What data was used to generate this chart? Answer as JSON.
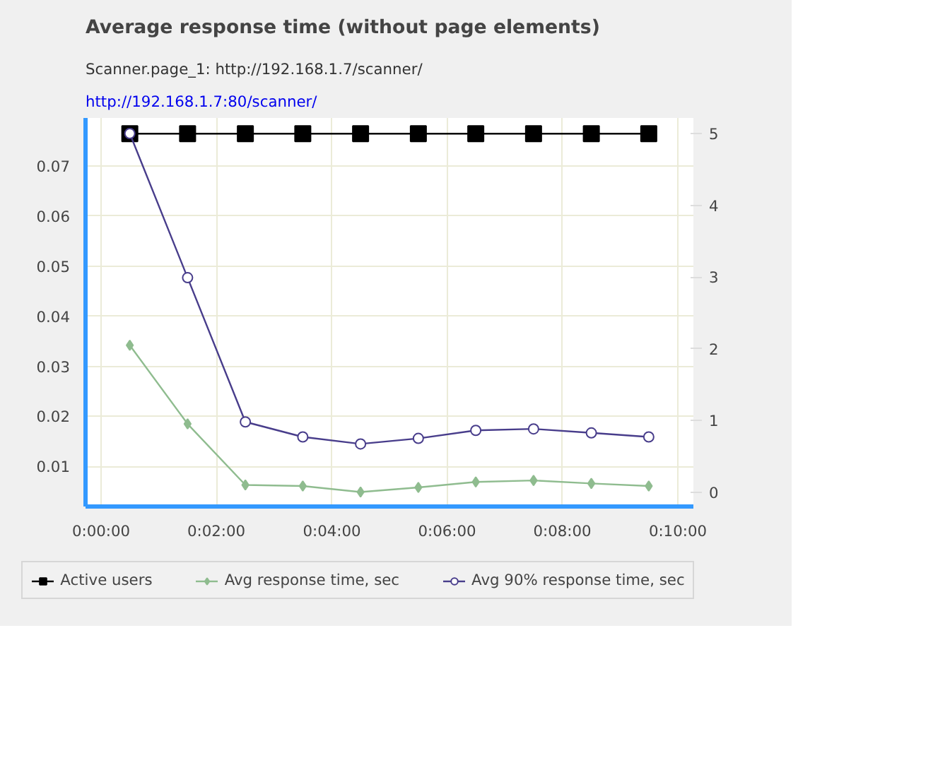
{
  "chart_data": {
    "type": "line",
    "title": "Average response time (without page elements)",
    "subtitle": "Scanner.page_1: http://192.168.1.7/scanner/",
    "annotations": [
      "http://192.168.1.7:80/scanner/"
    ],
    "x": [
      0.0083,
      0.025,
      0.0417,
      0.0583,
      0.075,
      0.0917,
      0.1083,
      0.125,
      0.1417,
      0.1583
    ],
    "series": [
      {
        "name": "Active users",
        "color": "#000000",
        "marker": "square",
        "axis": "y2",
        "values": [
          5,
          5,
          5,
          5,
          5,
          5,
          5,
          5,
          5,
          5
        ]
      },
      {
        "name": "Avg response time, sec",
        "color": "#8fbc8f",
        "marker": "diamond",
        "values": [
          0.0342,
          0.0185,
          0.0063,
          0.0061,
          0.0049,
          0.0058,
          0.0069,
          0.0072,
          0.0066,
          0.0061
        ]
      },
      {
        "name": "Avg 90% response time, sec",
        "color": "#483d8b",
        "marker": "circle",
        "values": [
          0.0765,
          0.0477,
          0.0189,
          0.0159,
          0.0145,
          0.0156,
          0.0172,
          0.0175,
          0.0167,
          0.0159
        ]
      }
    ],
    "xlim": [
      -0.0045,
      0.1712
    ],
    "xticks": [
      {
        "value": 0,
        "label": "0:00:00"
      },
      {
        "value": 0.0333,
        "label": "0:02:00"
      },
      {
        "value": 0.0667,
        "label": "0:04:00"
      },
      {
        "value": 0.1,
        "label": "0:06:00"
      },
      {
        "value": 0.1333,
        "label": "0:08:00"
      },
      {
        "value": 0.1667,
        "label": "0:10:00"
      }
    ],
    "ylim": [
      0.002,
      0.0796
    ],
    "yticks": [
      0.01,
      0.02,
      0.03,
      0.04,
      0.05,
      0.06,
      0.07
    ],
    "y2lim": [
      -0.2,
      5.22
    ],
    "y2ticks": [
      0,
      1,
      2,
      3,
      4,
      5
    ],
    "grid": true,
    "legend": "bottom"
  }
}
